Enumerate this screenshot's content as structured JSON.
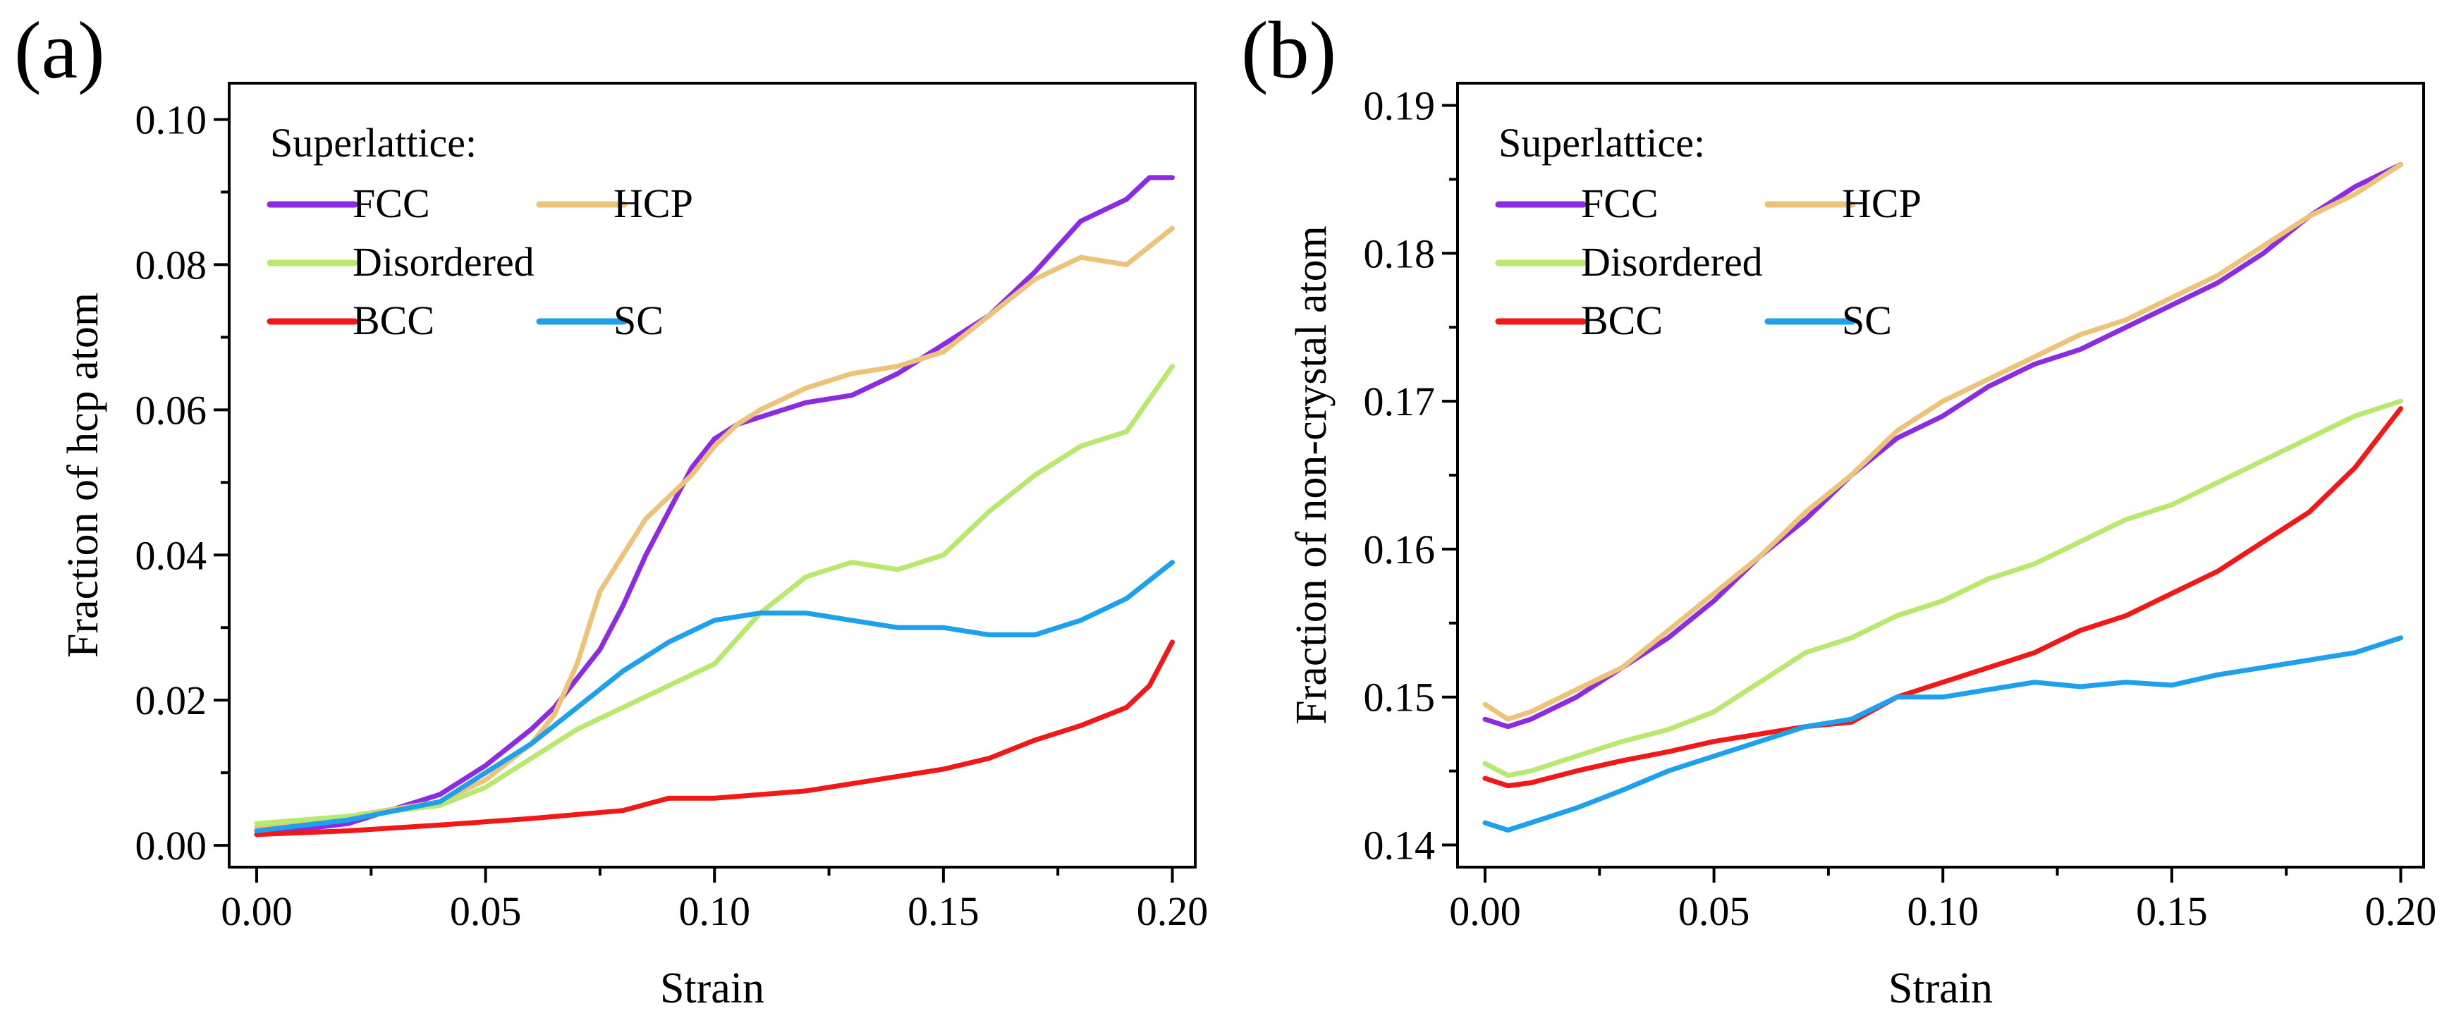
{
  "chart_data": [
    {
      "panel": "(a)",
      "type": "line",
      "title": "",
      "xlabel": "Strain",
      "ylabel": "Fraction of hcp atom",
      "xlim": [
        -0.006,
        0.205
      ],
      "ylim": [
        -0.003,
        0.105
      ],
      "xticks": [
        0.0,
        0.05,
        0.1,
        0.15,
        0.2
      ],
      "xtick_labels": [
        "0.00",
        "0.05",
        "0.10",
        "0.15",
        "0.20"
      ],
      "yticks": [
        0.0,
        0.02,
        0.04,
        0.06,
        0.08,
        0.1
      ],
      "ytick_labels": [
        "0.00",
        "0.02",
        "0.04",
        "0.06",
        "0.08",
        "0.10"
      ],
      "legend_title": "Superlattice:",
      "legend_position": "top-left",
      "series": [
        {
          "name": "FCC",
          "color": "#8b2be2",
          "x": [
            0,
            0.02,
            0.04,
            0.05,
            0.06,
            0.065,
            0.07,
            0.075,
            0.08,
            0.085,
            0.09,
            0.095,
            0.1,
            0.105,
            0.11,
            0.12,
            0.13,
            0.14,
            0.15,
            0.16,
            0.17,
            0.18,
            0.19,
            0.195,
            0.2
          ],
          "values": [
            0.0015,
            0.003,
            0.007,
            0.011,
            0.016,
            0.019,
            0.023,
            0.027,
            0.033,
            0.04,
            0.046,
            0.052,
            0.056,
            0.058,
            0.059,
            0.061,
            0.062,
            0.065,
            0.069,
            0.073,
            0.079,
            0.086,
            0.089,
            0.092,
            0.092
          ]
        },
        {
          "name": "HCP",
          "color": "#ecc379",
          "x": [
            0,
            0.02,
            0.04,
            0.05,
            0.06,
            0.065,
            0.07,
            0.075,
            0.08,
            0.085,
            0.09,
            0.095,
            0.1,
            0.105,
            0.11,
            0.12,
            0.13,
            0.14,
            0.15,
            0.16,
            0.17,
            0.18,
            0.19,
            0.2
          ],
          "values": [
            0.0025,
            0.004,
            0.006,
            0.009,
            0.014,
            0.018,
            0.025,
            0.035,
            0.04,
            0.045,
            0.048,
            0.051,
            0.055,
            0.058,
            0.06,
            0.063,
            0.065,
            0.066,
            0.068,
            0.073,
            0.078,
            0.081,
            0.08,
            0.085
          ]
        },
        {
          "name": "Disordered",
          "color": "#b8e86e",
          "x": [
            0,
            0.02,
            0.04,
            0.05,
            0.06,
            0.07,
            0.08,
            0.09,
            0.1,
            0.11,
            0.12,
            0.13,
            0.14,
            0.15,
            0.16,
            0.17,
            0.18,
            0.19,
            0.2
          ],
          "values": [
            0.003,
            0.004,
            0.0055,
            0.008,
            0.012,
            0.016,
            0.019,
            0.022,
            0.025,
            0.032,
            0.037,
            0.039,
            0.038,
            0.04,
            0.046,
            0.051,
            0.055,
            0.057,
            0.066
          ]
        },
        {
          "name": "BCC",
          "color": "#f21818",
          "x": [
            0,
            0.02,
            0.04,
            0.06,
            0.08,
            0.09,
            0.1,
            0.12,
            0.14,
            0.15,
            0.16,
            0.17,
            0.18,
            0.19,
            0.195,
            0.2
          ],
          "values": [
            0.0015,
            0.002,
            0.0028,
            0.0037,
            0.0048,
            0.0065,
            0.0065,
            0.0075,
            0.0095,
            0.0105,
            0.012,
            0.0145,
            0.0165,
            0.019,
            0.022,
            0.028
          ]
        },
        {
          "name": "SC",
          "color": "#1ea0ec",
          "x": [
            0,
            0.02,
            0.04,
            0.05,
            0.06,
            0.07,
            0.08,
            0.09,
            0.1,
            0.11,
            0.12,
            0.13,
            0.14,
            0.15,
            0.16,
            0.17,
            0.18,
            0.19,
            0.2
          ],
          "values": [
            0.002,
            0.0035,
            0.006,
            0.01,
            0.014,
            0.019,
            0.024,
            0.028,
            0.031,
            0.032,
            0.032,
            0.031,
            0.03,
            0.03,
            0.029,
            0.029,
            0.031,
            0.034,
            0.039
          ]
        }
      ]
    },
    {
      "panel": "(b)",
      "type": "line",
      "title": "",
      "xlabel": "Strain",
      "ylabel": "Fraction of non-crystal atom",
      "xlim": [
        -0.006,
        0.205
      ],
      "ylim": [
        0.1385,
        0.1915
      ],
      "xticks": [
        0.0,
        0.05,
        0.1,
        0.15,
        0.2
      ],
      "xtick_labels": [
        "0.00",
        "0.05",
        "0.10",
        "0.15",
        "0.20"
      ],
      "yticks": [
        0.14,
        0.15,
        0.16,
        0.17,
        0.18,
        0.19
      ],
      "ytick_labels": [
        "0.14",
        "0.15",
        "0.16",
        "0.17",
        "0.18",
        "0.19"
      ],
      "legend_title": "Superlattice:",
      "legend_position": "top-left",
      "series": [
        {
          "name": "FCC",
          "color": "#8b2be2",
          "x": [
            0,
            0.005,
            0.01,
            0.02,
            0.03,
            0.04,
            0.05,
            0.06,
            0.07,
            0.08,
            0.09,
            0.1,
            0.11,
            0.12,
            0.13,
            0.14,
            0.15,
            0.16,
            0.17,
            0.18,
            0.19,
            0.2
          ],
          "values": [
            0.1485,
            0.148,
            0.1485,
            0.15,
            0.152,
            0.154,
            0.1565,
            0.1595,
            0.162,
            0.165,
            0.1675,
            0.169,
            0.171,
            0.1725,
            0.1735,
            0.175,
            0.1765,
            0.178,
            0.18,
            0.1825,
            0.1845,
            0.186
          ]
        },
        {
          "name": "HCP",
          "color": "#ecc379",
          "x": [
            0,
            0.005,
            0.01,
            0.02,
            0.03,
            0.04,
            0.05,
            0.06,
            0.07,
            0.08,
            0.09,
            0.1,
            0.11,
            0.12,
            0.13,
            0.14,
            0.15,
            0.16,
            0.17,
            0.18,
            0.19,
            0.2
          ],
          "values": [
            0.1495,
            0.1485,
            0.149,
            0.1505,
            0.152,
            0.1545,
            0.157,
            0.1595,
            0.1625,
            0.165,
            0.168,
            0.17,
            0.1715,
            0.173,
            0.1745,
            0.1755,
            0.177,
            0.1785,
            0.1805,
            0.1825,
            0.184,
            0.186
          ]
        },
        {
          "name": "Disordered",
          "color": "#b8e86e",
          "x": [
            0,
            0.005,
            0.01,
            0.02,
            0.03,
            0.04,
            0.05,
            0.06,
            0.07,
            0.08,
            0.09,
            0.1,
            0.11,
            0.12,
            0.13,
            0.14,
            0.15,
            0.16,
            0.17,
            0.18,
            0.19,
            0.2
          ],
          "values": [
            0.1455,
            0.1447,
            0.145,
            0.146,
            0.147,
            0.1478,
            0.149,
            0.151,
            0.153,
            0.154,
            0.1555,
            0.1565,
            0.158,
            0.159,
            0.1605,
            0.162,
            0.163,
            0.1645,
            0.166,
            0.1675,
            0.169,
            0.17
          ]
        },
        {
          "name": "BCC",
          "color": "#f21818",
          "x": [
            0,
            0.005,
            0.01,
            0.02,
            0.03,
            0.04,
            0.05,
            0.06,
            0.07,
            0.08,
            0.09,
            0.1,
            0.11,
            0.12,
            0.13,
            0.14,
            0.15,
            0.16,
            0.17,
            0.18,
            0.19,
            0.2
          ],
          "values": [
            0.1445,
            0.144,
            0.1442,
            0.145,
            0.1457,
            0.1463,
            0.147,
            0.1475,
            0.148,
            0.1483,
            0.15,
            0.151,
            0.152,
            0.153,
            0.1545,
            0.1555,
            0.157,
            0.1585,
            0.1605,
            0.1625,
            0.1655,
            0.1695
          ]
        },
        {
          "name": "SC",
          "color": "#1ea0ec",
          "x": [
            0,
            0.005,
            0.01,
            0.02,
            0.03,
            0.04,
            0.05,
            0.06,
            0.07,
            0.08,
            0.09,
            0.1,
            0.11,
            0.12,
            0.13,
            0.14,
            0.15,
            0.16,
            0.17,
            0.18,
            0.19,
            0.2
          ],
          "values": [
            0.1415,
            0.141,
            0.1415,
            0.1425,
            0.1437,
            0.145,
            0.146,
            0.147,
            0.148,
            0.1485,
            0.15,
            0.15,
            0.1505,
            0.151,
            0.1507,
            0.151,
            0.1508,
            0.1515,
            0.152,
            0.1525,
            0.153,
            0.154
          ]
        }
      ]
    }
  ]
}
